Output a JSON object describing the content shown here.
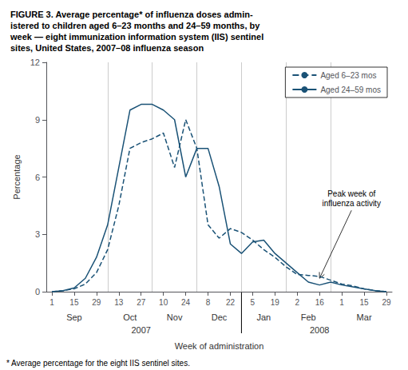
{
  "chart_data": {
    "type": "line",
    "title": "FIGURE 3. Average percentage* of influenza doses admin-\nistered to children aged 6–23 months and 24–59 months, by\nweek — eight immunization information system (IIS) sentinel\nsites, United States, 2007–08 influenza season",
    "x_label": "Week of administration",
    "y_label": "Percentage",
    "categories": [
      "1",
      null,
      "15",
      null,
      "29",
      null,
      "13",
      null,
      "27",
      null,
      "10",
      null,
      "24",
      null,
      "8",
      null,
      "22",
      null,
      "5",
      null,
      "19",
      null,
      "2",
      null,
      "16",
      null,
      "1",
      null,
      "15",
      null,
      "29"
    ],
    "series": [
      {
        "name": "Aged 24–59 mos",
        "line_style": "solid",
        "values": [
          0.0,
          0.05,
          0.2,
          0.7,
          1.8,
          3.5,
          6.5,
          9.5,
          9.8,
          9.8,
          9.5,
          9.0,
          6.0,
          7.5,
          7.5,
          5.5,
          2.5,
          2.0,
          2.6,
          2.7,
          2.0,
          1.5,
          1.0,
          0.5,
          0.35,
          0.5,
          0.35,
          0.25,
          0.15,
          0.05,
          0.0
        ]
      },
      {
        "name": "Aged 6–23 mos",
        "line_style": "dashed",
        "values": [
          0.0,
          0.05,
          0.15,
          0.4,
          1.0,
          2.2,
          4.5,
          7.5,
          7.8,
          8.0,
          8.3,
          6.5,
          9.0,
          7.5,
          3.5,
          2.8,
          3.3,
          3.1,
          2.7,
          2.2,
          1.8,
          1.3,
          0.9,
          0.85,
          0.8,
          0.6,
          0.4,
          0.3,
          0.15,
          0.05,
          0.0
        ]
      }
    ],
    "color": "#1a5276",
    "ylim": [
      0,
      12
    ],
    "yticks": [
      0,
      3,
      6,
      9,
      12
    ],
    "grid": false,
    "legend": "upper right",
    "month_labels": [
      {
        "text": "Sep",
        "x": 2
      },
      {
        "text": "Oct",
        "x": 7
      },
      {
        "text": "Nov",
        "x": 11
      },
      {
        "text": "Dec",
        "x": 15
      },
      {
        "text": "Jan",
        "x": 19
      },
      {
        "text": "Feb",
        "x": 23
      },
      {
        "text": "Mar",
        "x": 28
      }
    ],
    "year_labels": [
      {
        "text": "2007",
        "x": 8
      },
      {
        "text": "2008",
        "x": 24
      }
    ],
    "separators": [
      5,
      9,
      13,
      17,
      21,
      25
    ],
    "year_separator": 17,
    "annotations": [
      {
        "text": "Peak week of\ninfluenza activity",
        "x": 24,
        "y": 0.7
      }
    ],
    "footnote": "* Average percentage for the eight IIS sentinel sites."
  }
}
